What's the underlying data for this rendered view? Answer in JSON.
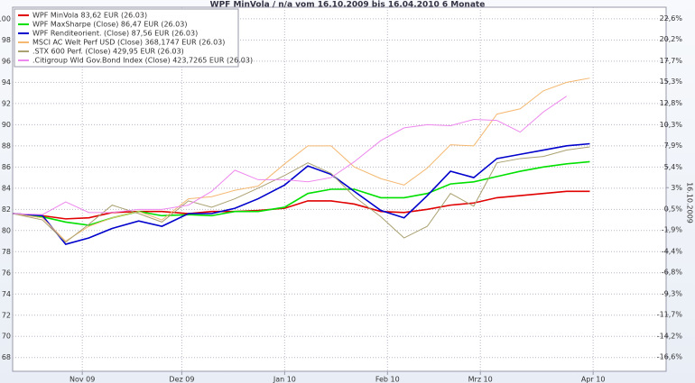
{
  "chart_data": {
    "type": "line",
    "title": "WPF MinVola / n/a vom 16.10.2009 bis 16.04.2010 6 Monate",
    "y2_label": "16.10.2009",
    "x": [
      -5,
      4,
      11,
      18,
      25,
      33,
      40,
      48,
      55,
      62,
      69,
      77,
      84,
      91,
      98,
      106,
      113,
      120,
      127,
      134,
      141,
      148,
      155,
      162,
      169
    ],
    "xlim": [
      -5,
      192
    ],
    "xticks": [
      {
        "value": 16,
        "label": "Nov 09"
      },
      {
        "value": 46,
        "label": "Dez 09"
      },
      {
        "value": 77,
        "label": "Jan 10"
      },
      {
        "value": 108,
        "label": "Feb 10"
      },
      {
        "value": 136,
        "label": "Mrz 10"
      },
      {
        "value": 170,
        "label": "Apr 10"
      }
    ],
    "ylim": [
      66.7,
      101.1
    ],
    "yticks": [
      68,
      70,
      72,
      74,
      76,
      78,
      80,
      82,
      84,
      86,
      88,
      90,
      92,
      94,
      96,
      98,
      100
    ],
    "y2lim": [
      -18.26,
      23.9
    ],
    "y2ticks": [
      {
        "value": -16.6,
        "label": "-16,6%"
      },
      {
        "value": -14.2,
        "label": "-14,2%"
      },
      {
        "value": -11.7,
        "label": "-11,7%"
      },
      {
        "value": -9.3,
        "label": "-9,3%"
      },
      {
        "value": -6.8,
        "label": "-6,8%"
      },
      {
        "value": -4.4,
        "label": "-4,4%"
      },
      {
        "value": -1.9,
        "label": "-1,9%"
      },
      {
        "value": 0.5,
        "label": "0,5%"
      },
      {
        "value": 3,
        "label": "3%"
      },
      {
        "value": 5.4,
        "label": "5,4%"
      },
      {
        "value": 7.9,
        "label": "7,9%"
      },
      {
        "value": 10.3,
        "label": "10,3%"
      },
      {
        "value": 12.8,
        "label": "12,8%"
      },
      {
        "value": 15.3,
        "label": "15,3%"
      },
      {
        "value": 17.7,
        "label": "17,7%"
      },
      {
        "value": 20.2,
        "label": "20,2%"
      },
      {
        "value": 22.6,
        "label": "22,6%"
      }
    ],
    "grid": true,
    "legend": "top-left",
    "series": [
      {
        "name": "WPF MinVola 83,62 EUR (26.03)",
        "color": "#e00000",
        "values": [
          81.6,
          81.4,
          81.1,
          81.2,
          81.7,
          81.8,
          81.8,
          81.6,
          81.8,
          81.8,
          81.9,
          82.1,
          82.8,
          82.8,
          82.5,
          81.8,
          81.7,
          82.0,
          82.4,
          82.6,
          83.1,
          83.3,
          83.5,
          83.7,
          83.7
        ]
      },
      {
        "name": "WPF MaxSharpe (Close) 86,47 EUR (26.03)",
        "color": "#00e000",
        "values": [
          81.6,
          81.3,
          80.8,
          80.5,
          81.2,
          81.8,
          81.4,
          81.5,
          81.4,
          81.8,
          81.8,
          82.2,
          83.5,
          83.9,
          83.9,
          83.1,
          83.1,
          83.5,
          84.4,
          84.6,
          85.1,
          85.6,
          86.0,
          86.3,
          86.5
        ]
      },
      {
        "name": "WPF Renditeorient. (Close) 87,56 EUR (26.03)",
        "color": "#0000cc",
        "values": [
          81.6,
          81.4,
          78.7,
          79.3,
          80.2,
          80.9,
          80.4,
          81.6,
          81.6,
          82.1,
          83.0,
          84.3,
          86.1,
          85.3,
          83.7,
          81.9,
          81.2,
          83.3,
          85.6,
          85.0,
          86.8,
          87.2,
          87.6,
          88.0,
          88.2
        ]
      },
      {
        "name": "MSCI AC Welt Perf USD (Close) 368,1747 EUR (26.03)",
        "color": "#f4b870",
        "values": [
          81.6,
          81.2,
          79.0,
          80.4,
          81.2,
          81.8,
          81.0,
          83.0,
          83.2,
          83.8,
          84.2,
          86.3,
          88.0,
          88.0,
          86.0,
          84.9,
          84.3,
          85.9,
          88.1,
          88.0,
          91.0,
          91.5,
          93.2,
          94.0,
          94.4
        ]
      },
      {
        "name": ".STX 600 Perf. (Close) 429,95 EUR (26.03)",
        "color": "#aaa070",
        "values": [
          81.6,
          81.0,
          78.9,
          80.6,
          82.4,
          81.6,
          80.8,
          82.8,
          82.2,
          83.0,
          84.0,
          85.2,
          86.4,
          85.4,
          83.2,
          81.3,
          79.3,
          80.4,
          83.5,
          82.3,
          86.4,
          86.8,
          87.0,
          87.6,
          87.9
        ]
      },
      {
        "name": ".Citigroup Wld Gov.Bond Index (Close) 423,7265 EUR (26.03)",
        "color": "#ee88ee",
        "values": [
          81.6,
          81.5,
          82.7,
          81.7,
          81.7,
          82.0,
          82.0,
          82.4,
          83.7,
          85.7,
          84.8,
          84.8,
          84.6,
          85.0,
          86.5,
          88.5,
          89.7,
          90.0,
          89.9,
          90.5,
          90.4,
          89.3,
          91.2,
          92.7,
          null
        ]
      }
    ]
  }
}
